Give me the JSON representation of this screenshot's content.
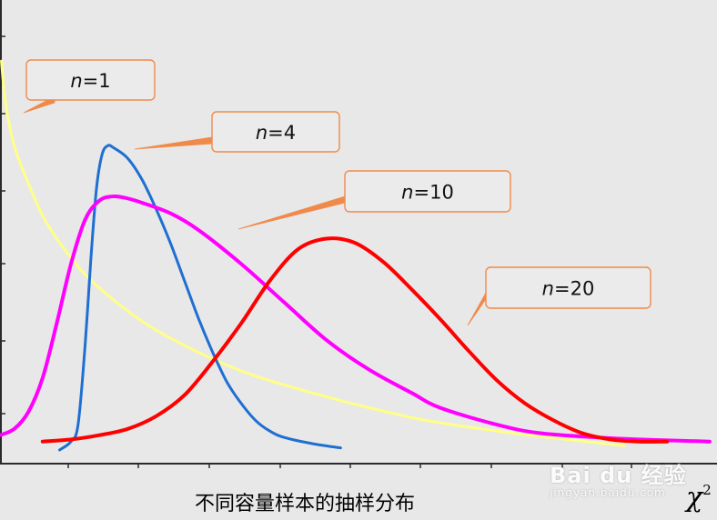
{
  "caption": "不同容量样本的抽样分布",
  "x_axis_symbol": "χ",
  "x_axis_superscript": "2",
  "watermark": {
    "main": "Bai du 经验",
    "sub": "jingyan.baidu.com"
  },
  "colors": {
    "background": "#e8e8e8",
    "n1": "#ffff88",
    "n4": "#1f6fd1",
    "n10": "#ff00ff",
    "n20": "#ff0000",
    "callout_border": "#f08a4b"
  },
  "chart_data": {
    "type": "line",
    "title": "",
    "xlabel": "χ²",
    "ylabel": "",
    "xlim": [
      0,
      50
    ],
    "ylim": [
      0,
      1
    ],
    "grid": false,
    "legend": "callouts",
    "series": [
      {
        "name": "n=1",
        "var": "n",
        "eq": "=",
        "num": "1",
        "color": "#ffff88",
        "x": [
          0.1,
          0.4,
          1,
          2,
          3,
          4,
          5,
          6,
          8,
          10,
          12,
          15,
          18,
          22,
          26,
          30,
          35,
          40,
          44
        ],
        "y": [
          0.92,
          0.82,
          0.72,
          0.63,
          0.555,
          0.5,
          0.455,
          0.415,
          0.355,
          0.305,
          0.265,
          0.215,
          0.175,
          0.135,
          0.1,
          0.07,
          0.045,
          0.025,
          0.01
        ]
      },
      {
        "name": "n=4",
        "var": "n",
        "eq": "=",
        "num": "4",
        "color": "#1f6fd1",
        "x": [
          4.2,
          5.0,
          5.5,
          6.0,
          6.4,
          6.8,
          7.2,
          7.6,
          8.0,
          9.0,
          10,
          11,
          12,
          13,
          14,
          15,
          16,
          17,
          18,
          19,
          20,
          22,
          24
        ],
        "y": [
          0.0,
          0.02,
          0.06,
          0.25,
          0.45,
          0.62,
          0.7,
          0.72,
          0.715,
          0.69,
          0.64,
          0.57,
          0.49,
          0.4,
          0.31,
          0.23,
          0.16,
          0.11,
          0.07,
          0.045,
          0.03,
          0.015,
          0.005
        ]
      },
      {
        "name": "n=10",
        "var": "n",
        "eq": "=",
        "num": "10",
        "color": "#ff00ff",
        "x": [
          0,
          1,
          2,
          3,
          4,
          5,
          6,
          7,
          8,
          9,
          10,
          12,
          14,
          17,
          20,
          23,
          26,
          29,
          31,
          35,
          38,
          42,
          45,
          50
        ],
        "y": [
          0.035,
          0.05,
          0.09,
          0.17,
          0.3,
          0.44,
          0.545,
          0.59,
          0.6,
          0.595,
          0.585,
          0.56,
          0.52,
          0.44,
          0.35,
          0.26,
          0.19,
          0.135,
          0.1,
          0.06,
          0.04,
          0.03,
          0.025,
          0.02
        ]
      },
      {
        "name": "n=20",
        "var": "n",
        "eq": "=",
        "num": "20",
        "color": "#ff0000",
        "x": [
          3,
          5,
          7,
          9,
          11,
          13,
          15,
          17,
          19,
          21,
          23,
          25,
          27,
          29,
          31,
          33,
          35,
          37,
          39,
          41,
          43,
          45,
          47
        ],
        "y": [
          0.02,
          0.025,
          0.035,
          0.05,
          0.08,
          0.13,
          0.21,
          0.3,
          0.4,
          0.475,
          0.5,
          0.49,
          0.445,
          0.38,
          0.31,
          0.235,
          0.165,
          0.11,
          0.07,
          0.04,
          0.025,
          0.02,
          0.02
        ]
      }
    ]
  }
}
